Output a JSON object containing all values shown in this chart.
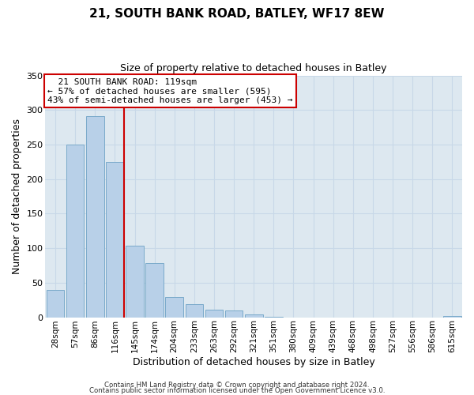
{
  "title": "21, SOUTH BANK ROAD, BATLEY, WF17 8EW",
  "subtitle": "Size of property relative to detached houses in Batley",
  "xlabel": "Distribution of detached houses by size in Batley",
  "ylabel": "Number of detached properties",
  "bar_labels": [
    "28sqm",
    "57sqm",
    "86sqm",
    "116sqm",
    "145sqm",
    "174sqm",
    "204sqm",
    "233sqm",
    "263sqm",
    "292sqm",
    "321sqm",
    "351sqm",
    "380sqm",
    "409sqm",
    "439sqm",
    "468sqm",
    "498sqm",
    "527sqm",
    "556sqm",
    "586sqm",
    "615sqm"
  ],
  "bar_values": [
    39,
    250,
    291,
    225,
    103,
    78,
    29,
    19,
    11,
    10,
    4,
    1,
    0,
    0,
    0,
    0,
    0,
    0,
    0,
    0,
    2
  ],
  "bar_color": "#b8d0e8",
  "bar_edge_color": "#7aaaca",
  "property_line_color": "#cc0000",
  "annotation_title": "21 SOUTH BANK ROAD: 119sqm",
  "annotation_line1": "← 57% of detached houses are smaller (595)",
  "annotation_line2": "43% of semi-detached houses are larger (453) →",
  "annotation_box_color": "#ffffff",
  "annotation_box_edge_color": "#cc0000",
  "ylim": [
    0,
    350
  ],
  "yticks": [
    0,
    50,
    100,
    150,
    200,
    250,
    300,
    350
  ],
  "footer_line1": "Contains HM Land Registry data © Crown copyright and database right 2024.",
  "footer_line2": "Contains public sector information licensed under the Open Government Licence v3.0.",
  "background_color": "#ffffff",
  "plot_bg_color": "#dde8f0",
  "grid_color": "#c8d8e8"
}
